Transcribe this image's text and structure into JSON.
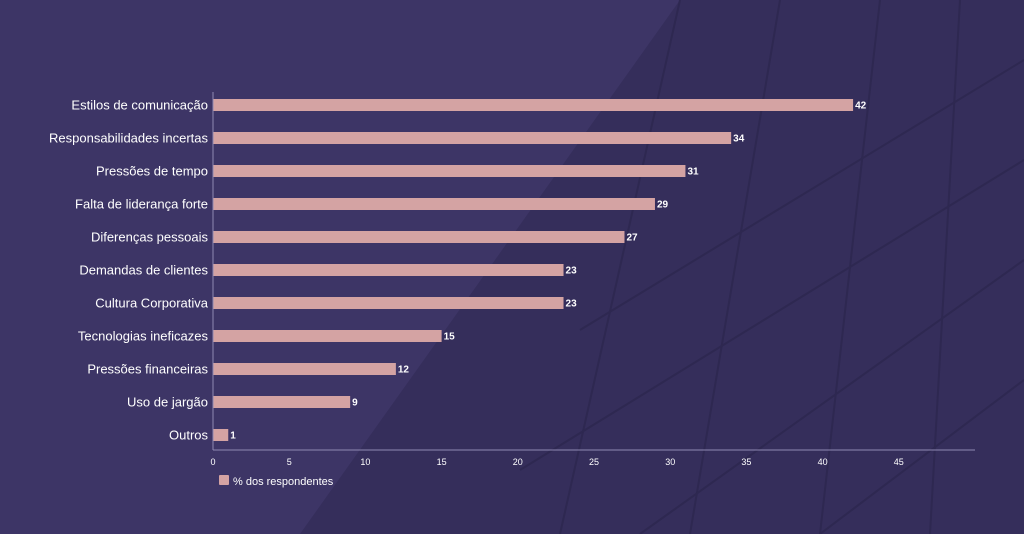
{
  "colors": {
    "background": "#3d3566",
    "bar": "#d4a3a3",
    "text": "#ffffff",
    "axis": "#8f89b3"
  },
  "chart_data": {
    "type": "bar",
    "orientation": "horizontal",
    "categories": [
      "Estilos de comunicação",
      "Responsabilidades incertas",
      "Pressões de tempo",
      "Falta de liderança forte",
      "Diferenças pessoais",
      "Demandas de clientes",
      "Cultura Corporativa",
      "Tecnologias ineficazes",
      "Pressões financeiras",
      "Uso de jargão",
      "Outros"
    ],
    "series": [
      {
        "name": "% dos respondentes",
        "values": [
          42,
          34,
          31,
          29,
          27,
          23,
          23,
          15,
          12,
          9,
          1
        ]
      }
    ],
    "x_ticks": [
      0,
      5,
      10,
      15,
      20,
      25,
      30,
      35,
      40,
      45
    ],
    "xlim": [
      0,
      50
    ],
    "grid": false,
    "legend": "bottom-left",
    "data_labels": true
  }
}
